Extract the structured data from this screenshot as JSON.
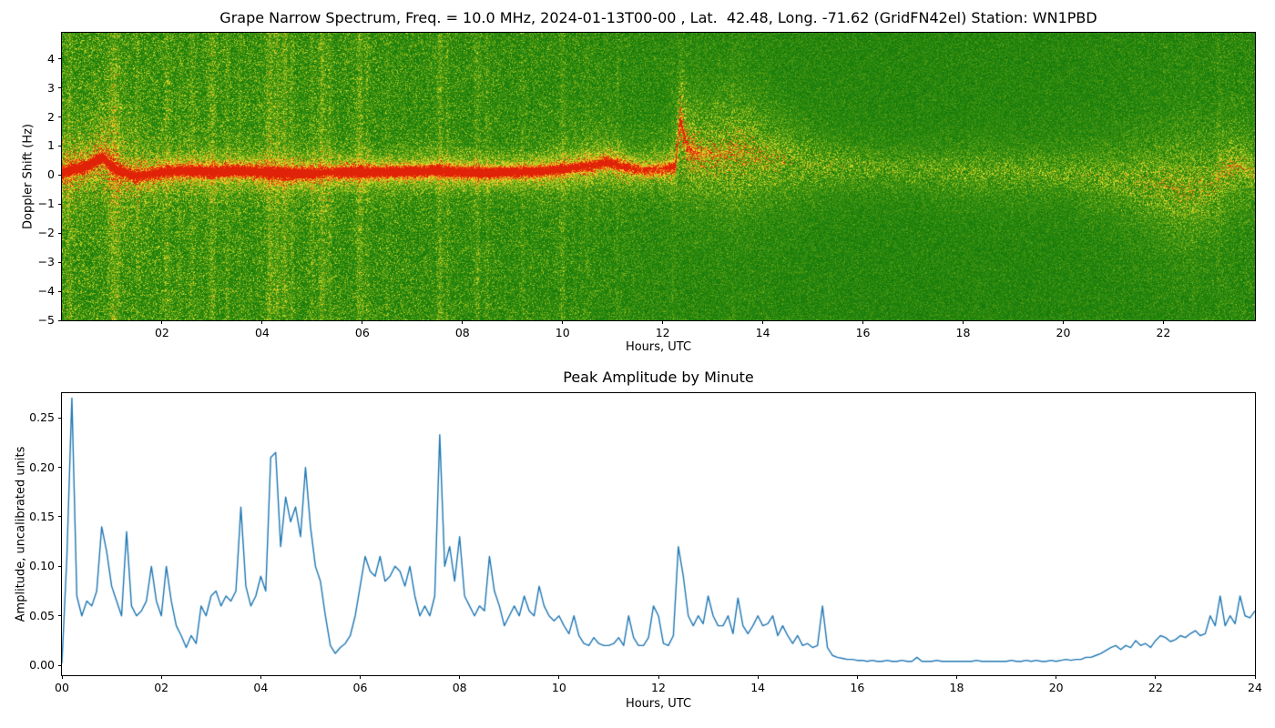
{
  "chart_data": [
    {
      "type": "heatmap",
      "title": "Grape Narrow Spectrum, Freq. = 10.0 MHz, 2024-01-13T00-00 , Lat.  42.48, Long. -71.62 (GridFN42el) Station: WN1PBD",
      "xlabel": "Hours, UTC",
      "ylabel": "Doppler Shift (Hz)",
      "xlim": [
        0,
        23.83
      ],
      "ylim": [
        -5,
        4.9
      ],
      "xtick_values": [
        2,
        4,
        6,
        8,
        10,
        12,
        14,
        16,
        18,
        20,
        22
      ],
      "xtick_labels": [
        "02",
        "04",
        "06",
        "08",
        "10",
        "12",
        "14",
        "16",
        "18",
        "20",
        "22"
      ],
      "ytick_values": [
        4,
        3,
        2,
        1,
        0,
        -1,
        -2,
        -3,
        -4,
        -5
      ],
      "ytick_labels": [
        "4",
        "3",
        "2",
        "1",
        "0",
        "−1",
        "−2",
        "−3",
        "−4",
        "−5"
      ],
      "description": "Doppler spectrogram: red carrier trace near 0 Hz until ~12.3 UTC sunrise spike to ~+2 Hz, then diffuse yellow scatter; vertical interference bands; green noise background",
      "carrier_trace": {
        "t": [
          0.0,
          0.5,
          0.8,
          1.1,
          1.5,
          2.0,
          2.5,
          3.0,
          3.5,
          4.0,
          4.5,
          5.0,
          5.3,
          5.6,
          6.0,
          6.5,
          7.0,
          7.5,
          8.0,
          8.5,
          9.0,
          9.5,
          10.0,
          10.5,
          10.9,
          11.2,
          11.6,
          12.0,
          12.25,
          12.35,
          12.5,
          12.8,
          13.2,
          13.6,
          14.0,
          14.5,
          15.0,
          16.0,
          17.0,
          18.0,
          19.0,
          20.0,
          21.0,
          21.8,
          22.4,
          22.9,
          23.3,
          23.6,
          23.83
        ],
        "center_hz": [
          0.1,
          0.3,
          0.6,
          0.15,
          -0.05,
          0.1,
          0.15,
          0.1,
          0.15,
          0.1,
          0.05,
          0.05,
          0.1,
          0.1,
          0.1,
          0.1,
          0.12,
          0.15,
          0.1,
          0.08,
          0.1,
          0.12,
          0.2,
          0.3,
          0.45,
          0.3,
          0.15,
          0.2,
          0.3,
          1.9,
          0.9,
          0.7,
          0.7,
          0.8,
          0.6,
          0.5,
          0.35,
          0.25,
          0.15,
          0.1,
          0.1,
          0.05,
          -0.1,
          -0.3,
          -0.5,
          -0.4,
          0.2,
          0.3,
          0.1
        ],
        "core_strength": [
          0.9,
          0.95,
          0.9,
          0.85,
          0.8,
          0.85,
          0.9,
          0.95,
          0.95,
          1.0,
          1.0,
          1.0,
          0.6,
          0.95,
          1.0,
          0.95,
          0.95,
          0.9,
          0.95,
          0.9,
          0.9,
          0.85,
          0.8,
          0.7,
          0.8,
          0.7,
          0.6,
          0.6,
          0.7,
          0.8,
          0.5,
          0.3,
          0.15,
          0.1,
          0.05,
          0.0,
          0.0,
          0.0,
          0.0,
          0.0,
          0.0,
          0.0,
          0.0,
          0.0,
          0.0,
          0.0,
          0.1,
          0.15,
          0.1
        ],
        "scatter_spread_hz": [
          1.2,
          1.0,
          1.2,
          1.5,
          1.3,
          0.9,
          0.8,
          0.8,
          0.7,
          0.8,
          0.7,
          0.7,
          0.9,
          0.7,
          0.6,
          0.6,
          0.6,
          0.7,
          0.6,
          0.6,
          0.6,
          0.7,
          0.8,
          0.9,
          0.9,
          0.8,
          0.7,
          0.8,
          1.0,
          1.6,
          1.4,
          1.3,
          1.4,
          1.5,
          1.3,
          1.1,
          0.9,
          0.7,
          0.7,
          0.8,
          0.8,
          0.8,
          1.0,
          1.3,
          1.5,
          1.3,
          1.2,
          1.0,
          0.9
        ],
        "scatter_strength": [
          0.8,
          0.7,
          0.8,
          0.7,
          0.6,
          0.5,
          0.4,
          0.45,
          0.4,
          0.5,
          0.5,
          0.5,
          0.5,
          0.5,
          0.45,
          0.4,
          0.4,
          0.45,
          0.45,
          0.4,
          0.4,
          0.4,
          0.5,
          0.55,
          0.6,
          0.55,
          0.5,
          0.5,
          0.7,
          1.0,
          0.9,
          0.8,
          0.8,
          0.85,
          0.7,
          0.6,
          0.5,
          0.45,
          0.4,
          0.45,
          0.45,
          0.45,
          0.5,
          0.6,
          0.65,
          0.6,
          0.7,
          0.6,
          0.5
        ]
      },
      "interference_bands": [
        [
          0.15,
          0.08,
          0.18
        ],
        [
          1.05,
          0.15,
          0.3
        ],
        [
          1.5,
          0.05,
          0.12
        ],
        [
          2.1,
          0.08,
          0.22
        ],
        [
          2.35,
          0.05,
          0.12
        ],
        [
          2.6,
          0.08,
          0.18
        ],
        [
          3.0,
          0.1,
          0.28
        ],
        [
          3.3,
          0.06,
          0.18
        ],
        [
          3.55,
          0.05,
          0.12
        ],
        [
          4.15,
          0.1,
          0.32
        ],
        [
          4.3,
          0.08,
          0.28
        ],
        [
          4.45,
          0.08,
          0.32
        ],
        [
          4.6,
          0.06,
          0.22
        ],
        [
          5.0,
          0.06,
          0.18
        ],
        [
          5.2,
          0.1,
          0.28
        ],
        [
          5.35,
          0.05,
          0.22
        ],
        [
          5.95,
          0.1,
          0.28
        ],
        [
          6.1,
          0.05,
          0.18
        ],
        [
          6.5,
          0.05,
          0.12
        ],
        [
          7.55,
          0.08,
          0.28
        ],
        [
          7.7,
          0.05,
          0.18
        ],
        [
          8.3,
          0.08,
          0.22
        ],
        [
          8.5,
          0.06,
          0.18
        ],
        [
          9.2,
          0.05,
          0.12
        ],
        [
          10.0,
          0.08,
          0.18
        ],
        [
          10.5,
          0.05,
          0.12
        ],
        [
          11.1,
          0.04,
          0.1
        ],
        [
          12.2,
          0.04,
          0.1
        ],
        [
          13.4,
          0.04,
          0.08
        ],
        [
          22.6,
          0.04,
          0.08
        ],
        [
          23.1,
          0.05,
          0.1
        ]
      ],
      "speckle_profile": {
        "t": [
          0,
          3,
          5.5,
          8,
          10,
          12.5,
          14,
          16,
          20,
          22,
          23.83
        ],
        "amp": [
          0.42,
          0.38,
          0.36,
          0.32,
          0.3,
          0.22,
          0.2,
          0.17,
          0.17,
          0.2,
          0.24
        ]
      },
      "colormap": [
        [
          0.0,
          8,
          92,
          8
        ],
        [
          0.25,
          26,
          128,
          12
        ],
        [
          0.45,
          95,
          162,
          22
        ],
        [
          0.6,
          176,
          202,
          30
        ],
        [
          0.72,
          233,
          230,
          48
        ],
        [
          0.85,
          246,
          158,
          24
        ],
        [
          1.0,
          224,
          34,
          8
        ]
      ]
    },
    {
      "type": "line",
      "title": "Peak Amplitude by Minute",
      "xlabel": "Hours, UTC",
      "ylabel": "Amplitude, uncalibrated units",
      "xlim": [
        0,
        24
      ],
      "ylim": [
        -0.01,
        0.275
      ],
      "xtick_values": [
        0,
        2,
        4,
        6,
        8,
        10,
        12,
        14,
        16,
        18,
        20,
        22,
        24
      ],
      "xtick_labels": [
        "00",
        "02",
        "04",
        "06",
        "08",
        "10",
        "12",
        "14",
        "16",
        "18",
        "20",
        "22",
        "24"
      ],
      "ytick_values": [
        0.0,
        0.05,
        0.1,
        0.15,
        0.2,
        0.25
      ],
      "ytick_labels": [
        "0.00",
        "0.05",
        "0.10",
        "0.15",
        "0.20",
        "0.25"
      ],
      "line_color": "#1f77b4",
      "x_start": 0,
      "x_step": 0.1,
      "y": [
        0.002,
        0.11,
        0.27,
        0.07,
        0.05,
        0.065,
        0.06,
        0.075,
        0.14,
        0.115,
        0.08,
        0.065,
        0.05,
        0.135,
        0.06,
        0.05,
        0.055,
        0.065,
        0.1,
        0.065,
        0.05,
        0.1,
        0.065,
        0.04,
        0.03,
        0.018,
        0.03,
        0.022,
        0.06,
        0.05,
        0.07,
        0.075,
        0.06,
        0.07,
        0.065,
        0.075,
        0.16,
        0.08,
        0.06,
        0.07,
        0.09,
        0.075,
        0.21,
        0.215,
        0.12,
        0.17,
        0.145,
        0.16,
        0.13,
        0.2,
        0.14,
        0.1,
        0.085,
        0.05,
        0.02,
        0.012,
        0.018,
        0.022,
        0.03,
        0.05,
        0.08,
        0.11,
        0.095,
        0.09,
        0.11,
        0.085,
        0.09,
        0.1,
        0.095,
        0.08,
        0.1,
        0.07,
        0.05,
        0.06,
        0.05,
        0.07,
        0.233,
        0.1,
        0.12,
        0.085,
        0.13,
        0.07,
        0.06,
        0.05,
        0.06,
        0.055,
        0.11,
        0.075,
        0.06,
        0.04,
        0.05,
        0.06,
        0.05,
        0.07,
        0.055,
        0.05,
        0.08,
        0.06,
        0.05,
        0.045,
        0.05,
        0.04,
        0.032,
        0.05,
        0.03,
        0.022,
        0.02,
        0.028,
        0.022,
        0.02,
        0.02,
        0.022,
        0.028,
        0.02,
        0.05,
        0.028,
        0.02,
        0.02,
        0.028,
        0.06,
        0.05,
        0.022,
        0.02,
        0.03,
        0.12,
        0.09,
        0.05,
        0.04,
        0.05,
        0.042,
        0.07,
        0.05,
        0.04,
        0.04,
        0.05,
        0.032,
        0.068,
        0.04,
        0.032,
        0.04,
        0.05,
        0.04,
        0.042,
        0.05,
        0.03,
        0.04,
        0.03,
        0.022,
        0.03,
        0.02,
        0.022,
        0.018,
        0.02,
        0.06,
        0.018,
        0.01,
        0.008,
        0.007,
        0.006,
        0.006,
        0.005,
        0.005,
        0.004,
        0.005,
        0.004,
        0.004,
        0.005,
        0.004,
        0.004,
        0.005,
        0.004,
        0.004,
        0.008,
        0.004,
        0.004,
        0.004,
        0.005,
        0.004,
        0.004,
        0.004,
        0.004,
        0.004,
        0.004,
        0.004,
        0.005,
        0.004,
        0.004,
        0.004,
        0.004,
        0.004,
        0.004,
        0.005,
        0.004,
        0.004,
        0.005,
        0.004,
        0.005,
        0.004,
        0.004,
        0.005,
        0.004,
        0.005,
        0.006,
        0.005,
        0.006,
        0.006,
        0.008,
        0.008,
        0.01,
        0.012,
        0.015,
        0.018,
        0.02,
        0.016,
        0.02,
        0.018,
        0.025,
        0.02,
        0.022,
        0.018,
        0.025,
        0.03,
        0.028,
        0.024,
        0.026,
        0.03,
        0.028,
        0.032,
        0.035,
        0.03,
        0.032,
        0.05,
        0.04,
        0.07,
        0.04,
        0.05,
        0.042,
        0.07,
        0.05,
        0.048,
        0.055
      ]
    }
  ]
}
